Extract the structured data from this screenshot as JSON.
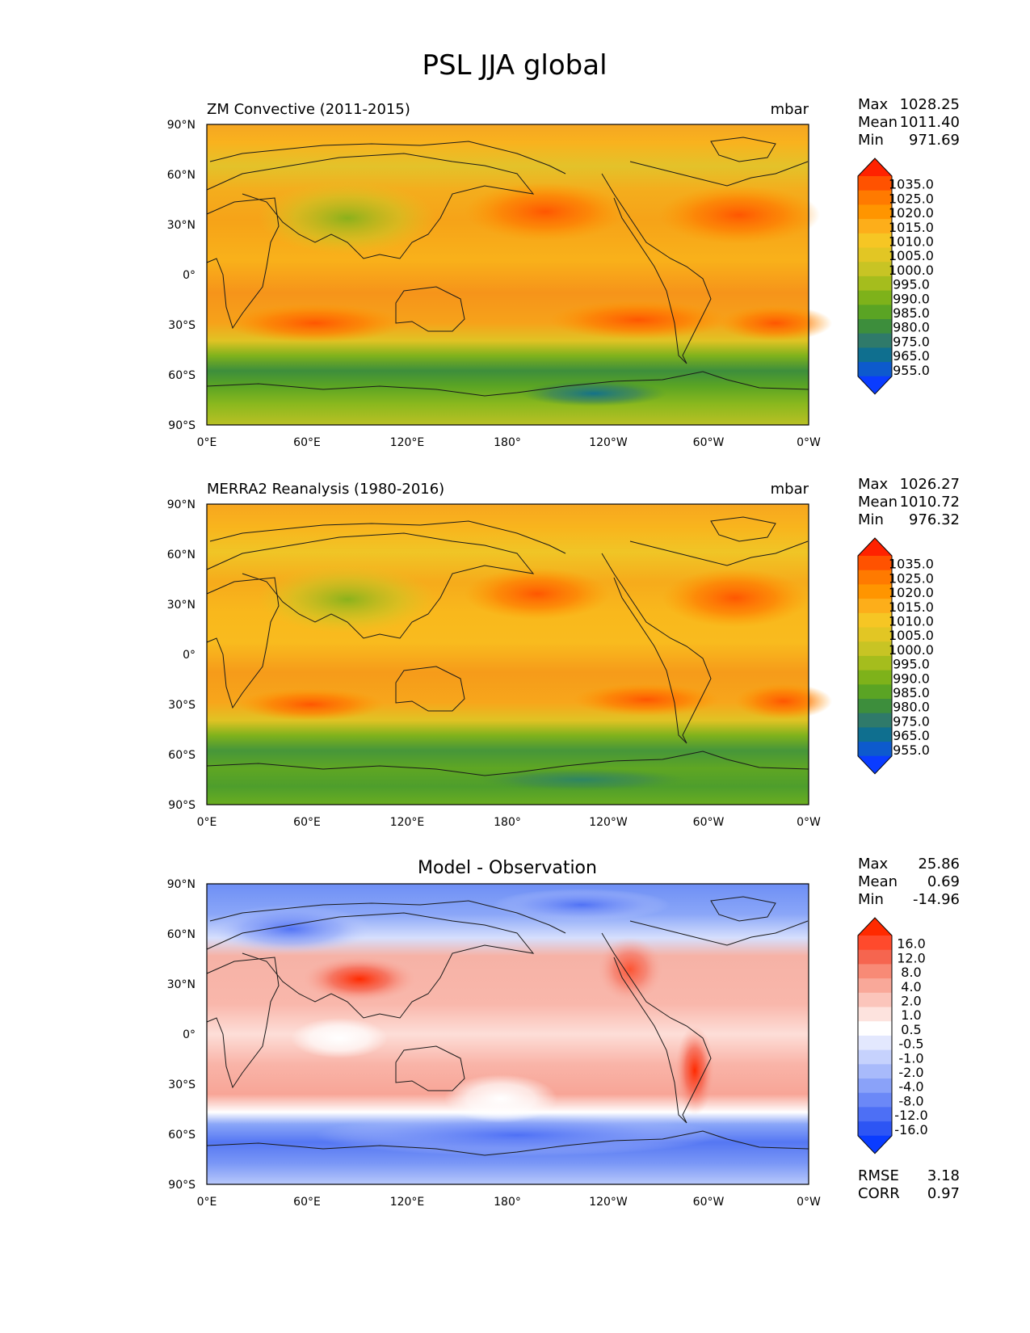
{
  "chart_data": {
    "type": "heatmap",
    "title": "PSL JJA global",
    "xticks": [
      "0°E",
      "60°E",
      "120°E",
      "180°",
      "120°W",
      "60°W",
      "0°W"
    ],
    "yticks": [
      "90°N",
      "60°N",
      "30°N",
      "0°",
      "30°S",
      "60°S",
      "90°S"
    ],
    "panels": [
      {
        "title": "ZM Convective (2011-2015)",
        "units": "mbar",
        "stats": [
          [
            "Max",
            "1028.25"
          ],
          [
            "Mean",
            "1011.40"
          ],
          [
            "Min",
            "971.69"
          ]
        ],
        "colorbar_levels": [
          "1035.0",
          "1025.0",
          "1020.0",
          "1015.0",
          "1010.0",
          "1005.0",
          "1000.0",
          "995.0",
          "990.0",
          "985.0",
          "980.0",
          "975.0",
          "965.0",
          "955.0"
        ],
        "colorbar_colors": [
          "#ff2200",
          "#ff5200",
          "#ff7a00",
          "#ff9500",
          "#fdae1a",
          "#f6c624",
          "#e2c624",
          "#c8c424",
          "#a5bd1d",
          "#7eb21a",
          "#5aa424",
          "#3d8e3c",
          "#2f7a6a",
          "#0f6f8f",
          "#0d5acd",
          "#0a3cff"
        ]
      },
      {
        "title": "MERRA2 Reanalysis (1980-2016)",
        "units": "mbar",
        "stats": [
          [
            "Max",
            "1026.27"
          ],
          [
            "Mean",
            "1010.72"
          ],
          [
            "Min",
            "976.32"
          ]
        ],
        "colorbar_levels": [
          "1035.0",
          "1025.0",
          "1020.0",
          "1015.0",
          "1010.0",
          "1005.0",
          "1000.0",
          "995.0",
          "990.0",
          "985.0",
          "980.0",
          "975.0",
          "965.0",
          "955.0"
        ],
        "colorbar_colors": [
          "#ff2200",
          "#ff5200",
          "#ff7a00",
          "#ff9500",
          "#fdae1a",
          "#f6c624",
          "#e2c624",
          "#c8c424",
          "#a5bd1d",
          "#7eb21a",
          "#5aa424",
          "#3d8e3c",
          "#2f7a6a",
          "#0f6f8f",
          "#0d5acd",
          "#0a3cff"
        ]
      },
      {
        "title": "Model - Observation",
        "units": "",
        "stats": [
          [
            "Max",
            "25.86"
          ],
          [
            "Mean",
            "0.69"
          ],
          [
            "Min",
            "-14.96"
          ]
        ],
        "colorbar_levels": [
          "16.0",
          "12.0",
          "8.0",
          "4.0",
          "2.0",
          "1.0",
          "0.5",
          "-0.5",
          "-1.0",
          "-2.0",
          "-4.0",
          "-8.0",
          "-12.0",
          "-16.0"
        ],
        "colorbar_colors": [
          "#ff2a00",
          "#ff4a2c",
          "#f6654f",
          "#f88a76",
          "#f9a899",
          "#fbc5bb",
          "#fde3de",
          "#ffffff",
          "#e3e8fe",
          "#c6d2fd",
          "#a8bafb",
          "#8aa2f9",
          "#6b88f7",
          "#4d6ff5",
          "#2d55f4",
          "#0a3cff"
        ],
        "extra_stats": [
          [
            "RMSE",
            "3.18"
          ],
          [
            "CORR",
            "0.97"
          ]
        ]
      }
    ]
  }
}
